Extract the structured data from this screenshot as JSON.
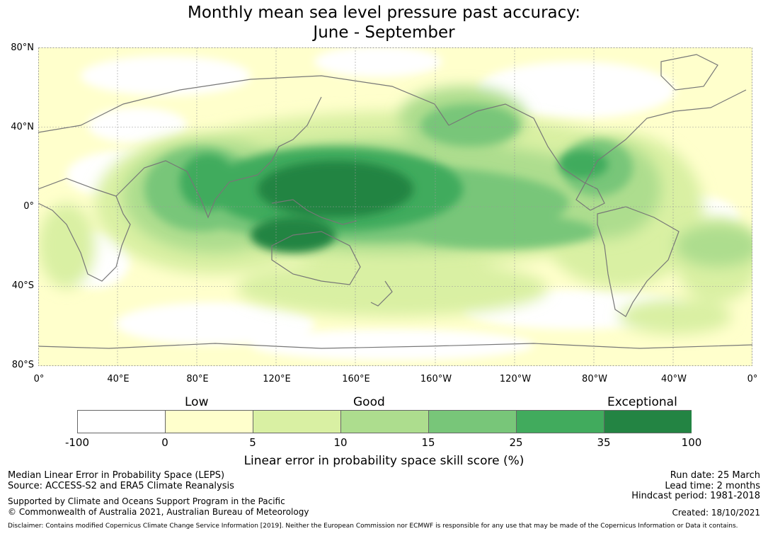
{
  "header": {
    "title_line1": "Monthly mean sea level pressure past accuracy:",
    "title_line2": "June - September"
  },
  "map": {
    "lat_labels": [
      "80°N",
      "40°N",
      "0°",
      "40°S",
      "80°S"
    ],
    "lon_labels": [
      "0°",
      "40°E",
      "80°E",
      "120°E",
      "160°E",
      "160°W",
      "120°W",
      "80°W",
      "40°W",
      "0°"
    ],
    "colors": {
      "land_outline": "#777777",
      "grid": "#bbbbbb"
    }
  },
  "legend": {
    "categories": [
      "Low",
      "Good",
      "Exceptional"
    ],
    "ticks": [
      "-100",
      "0",
      "5",
      "10",
      "15",
      "25",
      "35",
      "100"
    ],
    "colors": [
      "#ffffff",
      "#ffffcc",
      "#d9f0a3",
      "#addd8e",
      "#78c679",
      "#41ab5d",
      "#238443"
    ],
    "label": "Linear error in probability space skill score (%)"
  },
  "footer": {
    "method": "Median Linear Error in Probability Space (LEPS)",
    "source": "Source: ACCESS-S2 and ERA5 Climate Reanalysis",
    "support": "Supported by Climate and Oceans Support Program in the Pacific",
    "copyright": "© Commonwealth of Australia 2021, Australian Bureau of Meteorology",
    "run_date": "Run date: 25 March",
    "lead_time": "Lead time: 2 months",
    "hindcast": "Hindcast period: 1981-2018",
    "created": "Created: 18/10/2021",
    "disclaimer": "Disclaimer: Contains modified Copernicus Climate Change Service Information [2019]. Neither the European Commission nor ECMWF is responsible for any use that may be made of the Copernicus Information or Data it contains."
  }
}
